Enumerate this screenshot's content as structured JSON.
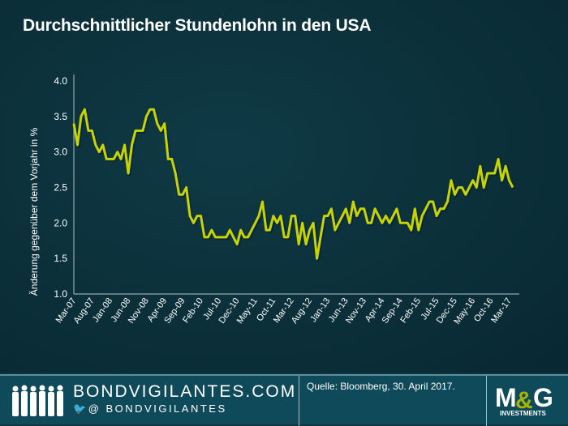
{
  "chart_data": {
    "type": "line",
    "title": "Durchschnittlicher Stundenlohn in den USA",
    "ylabel": "Änderung gegenüber dem Vorjahr in %",
    "xlabel": "",
    "ylim": [
      1.0,
      4.0
    ],
    "yticks": [
      "1.0",
      "1.5",
      "2.0",
      "2.5",
      "3.0",
      "3.5",
      "4.0"
    ],
    "xticks": [
      "Mar-07",
      "Aug-07",
      "Jan-08",
      "Jun-08",
      "Nov-08",
      "Apr-09",
      "Sep-09",
      "Feb-10",
      "Jul-10",
      "Dec-10",
      "May-11",
      "Oct-11",
      "Mar-12",
      "Aug-12",
      "Jan-13",
      "Jun-13",
      "Nov-13",
      "Apr-14",
      "Sep-14",
      "Feb-15",
      "Jul-15",
      "Dec-15",
      "May-16",
      "Oct-16",
      "Mar-17"
    ],
    "grid": false,
    "series": [
      {
        "name": "Durchschnittlicher Stundenlohn",
        "color": "#c8d400",
        "start": "Mar-07",
        "end": "Apr-17",
        "values": [
          3.4,
          3.1,
          3.5,
          3.6,
          3.3,
          3.3,
          3.1,
          3.0,
          3.1,
          2.9,
          2.9,
          2.9,
          3.0,
          2.9,
          3.1,
          2.7,
          3.1,
          3.3,
          3.3,
          3.3,
          3.5,
          3.6,
          3.6,
          3.4,
          3.3,
          3.4,
          2.9,
          2.9,
          2.7,
          2.4,
          2.4,
          2.5,
          2.1,
          2.0,
          2.1,
          2.1,
          1.8,
          1.8,
          1.9,
          1.8,
          1.8,
          1.8,
          1.8,
          1.9,
          1.8,
          1.7,
          1.9,
          1.8,
          1.8,
          1.9,
          2.0,
          2.1,
          2.3,
          1.9,
          1.9,
          2.1,
          2.0,
          2.1,
          1.8,
          1.8,
          2.1,
          2.1,
          1.7,
          2.0,
          1.7,
          1.9,
          2.0,
          1.5,
          1.8,
          2.1,
          2.1,
          2.2,
          1.9,
          2.0,
          2.1,
          2.2,
          2.0,
          2.3,
          2.1,
          2.2,
          2.2,
          2.0,
          2.0,
          2.2,
          2.1,
          2.0,
          2.1,
          2.0,
          2.1,
          2.2,
          2.0,
          2.0,
          2.0,
          1.9,
          2.2,
          1.9,
          2.1,
          2.2,
          2.3,
          2.3,
          2.1,
          2.2,
          2.2,
          2.3,
          2.6,
          2.4,
          2.5,
          2.5,
          2.4,
          2.5,
          2.6,
          2.5,
          2.8,
          2.5,
          2.7,
          2.7,
          2.7,
          2.9,
          2.6,
          2.8,
          2.6,
          2.5
        ]
      }
    ]
  },
  "footer": {
    "brand": "BONDVIGILANTES.COM",
    "handle": "@ BONDVIGILANTES",
    "source": "Quelle:  Bloomberg, 30. April 2017.",
    "logo": "M&G",
    "logo_sub": "INVESTMENTS",
    "twitter_icon": "twitter-bird-icon"
  }
}
